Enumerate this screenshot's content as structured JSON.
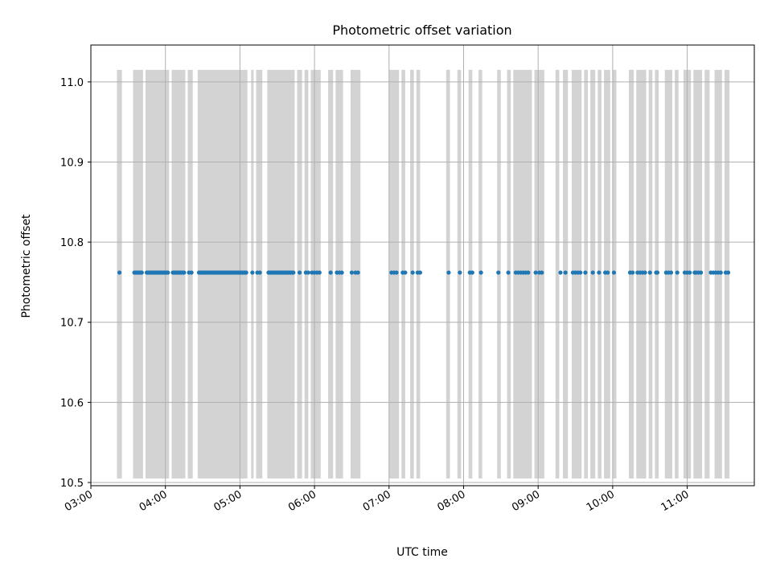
{
  "chart_data": {
    "type": "scatter",
    "title": "Photometric offset variation",
    "xlabel": "UTC time",
    "ylabel": "Photometric offset",
    "xlim": [
      "03:00",
      "11:54"
    ],
    "ylim": [
      10.496,
      11.046
    ],
    "x_ticks": [
      "03:00",
      "04:00",
      "05:00",
      "06:00",
      "07:00",
      "08:00",
      "09:00",
      "10:00",
      "11:00"
    ],
    "y_ticks": [
      "10.5",
      "10.6",
      "10.7",
      "10.8",
      "10.9",
      "11.0"
    ],
    "grid": true,
    "colors": {
      "marker": "#1f77b4",
      "band": "#d3d3d3",
      "grid": "#b0b0b0"
    },
    "bands": {
      "ymin": 10.505,
      "ymax": 11.015,
      "ranges": [
        [
          "03:21",
          "03:25"
        ],
        [
          "03:34",
          "03:42"
        ],
        [
          "03:44",
          "04:03"
        ],
        [
          "04:05",
          "04:16"
        ],
        [
          "04:18",
          "04:22"
        ],
        [
          "04:26",
          "05:06"
        ],
        [
          "05:09",
          "05:11"
        ],
        [
          "05:13",
          "05:18"
        ],
        [
          "05:22",
          "05:44"
        ],
        [
          "05:46",
          "05:50"
        ],
        [
          "05:52",
          "05:55"
        ],
        [
          "05:57",
          "06:05"
        ],
        [
          "06:11",
          "06:15"
        ],
        [
          "06:17",
          "06:23"
        ],
        [
          "06:29",
          "06:37"
        ],
        [
          "07:00",
          "07:08"
        ],
        [
          "07:10",
          "07:13"
        ],
        [
          "07:17",
          "07:20"
        ],
        [
          "07:22",
          "07:25"
        ],
        [
          "07:46",
          "07:49"
        ],
        [
          "07:55",
          "07:58"
        ],
        [
          "08:04",
          "08:07"
        ],
        [
          "08:12",
          "08:15"
        ],
        [
          "08:27",
          "08:30"
        ],
        [
          "08:35",
          "08:38"
        ],
        [
          "08:40",
          "08:55"
        ],
        [
          "08:57",
          "09:05"
        ],
        [
          "09:14",
          "09:17"
        ],
        [
          "09:20",
          "09:24"
        ],
        [
          "09:27",
          "09:35"
        ],
        [
          "09:37",
          "09:40"
        ],
        [
          "09:42",
          "09:46"
        ],
        [
          "09:48",
          "09:51"
        ],
        [
          "09:53",
          "09:58"
        ],
        [
          "10:00",
          "10:03"
        ],
        [
          "10:13",
          "10:17"
        ],
        [
          "10:19",
          "10:27"
        ],
        [
          "10:29",
          "10:32"
        ],
        [
          "10:34",
          "10:37"
        ],
        [
          "10:42",
          "10:48"
        ],
        [
          "10:50",
          "10:53"
        ],
        [
          "10:57",
          "11:03"
        ],
        [
          "11:05",
          "11:12"
        ],
        [
          "11:14",
          "11:18"
        ],
        [
          "11:22",
          "11:28"
        ],
        [
          "11:30",
          "11:34"
        ]
      ]
    },
    "series": [
      {
        "offset": 10.762,
        "x": [
          "03:23",
          "03:35",
          "03:36",
          "03:37",
          "03:38",
          "03:39",
          "03:40",
          "03:41",
          "03:45",
          "03:46",
          "03:47",
          "03:48",
          "03:49",
          "03:50",
          "03:51",
          "03:52",
          "03:53",
          "03:54",
          "03:55",
          "03:56",
          "03:57",
          "03:58",
          "03:59",
          "04:00",
          "04:01",
          "04:02",
          "04:06",
          "04:07",
          "04:08",
          "04:09",
          "04:10",
          "04:11",
          "04:12",
          "04:13",
          "04:14",
          "04:15",
          "04:19",
          "04:21",
          "04:27",
          "04:28",
          "04:29",
          "04:30",
          "04:31",
          "04:32",
          "04:33",
          "04:34",
          "04:35",
          "04:36",
          "04:37",
          "04:38",
          "04:39",
          "04:40",
          "04:41",
          "04:42",
          "04:43",
          "04:44",
          "04:45",
          "04:46",
          "04:47",
          "04:48",
          "04:49",
          "04:50",
          "04:51",
          "04:52",
          "04:53",
          "04:54",
          "04:55",
          "04:56",
          "04:57",
          "04:58",
          "04:59",
          "05:00",
          "05:01",
          "05:02",
          "05:03",
          "05:04",
          "05:05",
          "05:10",
          "05:14",
          "05:16",
          "05:23",
          "05:24",
          "05:25",
          "05:26",
          "05:27",
          "05:28",
          "05:29",
          "05:30",
          "05:31",
          "05:32",
          "05:33",
          "05:34",
          "05:35",
          "05:36",
          "05:37",
          "05:38",
          "05:39",
          "05:40",
          "05:41",
          "05:42",
          "05:43",
          "05:48",
          "05:53",
          "05:55",
          "05:58",
          "06:00",
          "06:02",
          "06:04",
          "06:13",
          "06:18",
          "06:20",
          "06:22",
          "06:30",
          "06:33",
          "06:35",
          "07:02",
          "07:04",
          "07:06",
          "07:11",
          "07:13",
          "07:19",
          "07:23",
          "07:25",
          "07:48",
          "07:57",
          "08:05",
          "08:07",
          "08:14",
          "08:28",
          "08:36",
          "08:42",
          "08:44",
          "08:46",
          "08:48",
          "08:50",
          "08:52",
          "08:58",
          "09:01",
          "09:03",
          "09:18",
          "09:22",
          "09:28",
          "09:30",
          "09:32",
          "09:34",
          "09:38",
          "09:44",
          "09:49",
          "09:54",
          "09:56",
          "10:01",
          "10:14",
          "10:16",
          "10:20",
          "10:22",
          "10:24",
          "10:26",
          "10:30",
          "10:35",
          "10:36",
          "10:43",
          "10:45",
          "10:47",
          "10:52",
          "10:58",
          "11:00",
          "11:02",
          "11:06",
          "11:07",
          "11:09",
          "11:11",
          "11:19",
          "11:21",
          "11:23",
          "11:25",
          "11:27",
          "11:31",
          "11:33"
        ]
      }
    ]
  }
}
